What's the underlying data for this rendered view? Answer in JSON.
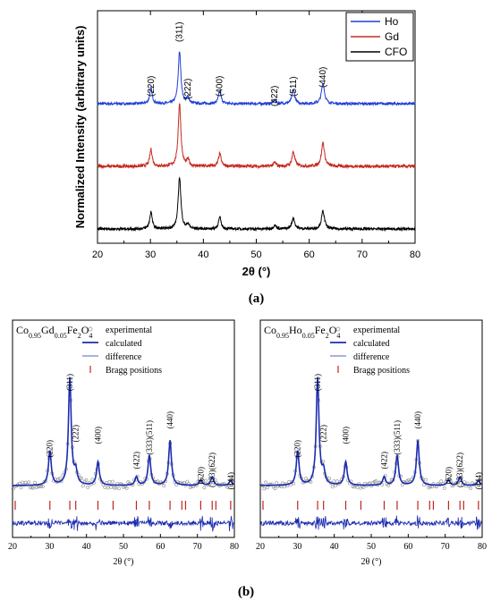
{
  "chart_data": [
    {
      "type": "line",
      "panel_label": "(a)",
      "xlabel": "2θ (°)",
      "ylabel": "Normalized Intensity (arbitrary units)",
      "xlim": [
        20,
        80
      ],
      "xticks": [
        20,
        30,
        40,
        50,
        60,
        70,
        80
      ],
      "legend_position": "top-right",
      "peaks": [
        {
          "label": "(220)",
          "x": 30.1
        },
        {
          "label": "(311)",
          "x": 35.5
        },
        {
          "label": "(222)",
          "x": 37.1
        },
        {
          "label": "(400)",
          "x": 43.1
        },
        {
          "label": "(422)",
          "x": 53.5
        },
        {
          "label": "(511)",
          "x": 57.0
        },
        {
          "label": "(440)",
          "x": 62.6
        }
      ],
      "series": [
        {
          "name": "Ho",
          "color": "#1f3fd6",
          "peak_heights": [
            0.3,
            1.0,
            0.12,
            0.24,
            0.07,
            0.26,
            0.4
          ]
        },
        {
          "name": "Gd",
          "color": "#c62a20",
          "peak_heights": [
            0.27,
            1.0,
            0.1,
            0.2,
            0.06,
            0.23,
            0.38
          ]
        },
        {
          "name": "CFO",
          "color": "#000000",
          "peak_heights": [
            0.33,
            1.0,
            0.09,
            0.22,
            0.07,
            0.21,
            0.35
          ]
        }
      ]
    },
    {
      "type": "line",
      "panel_label": "(b)",
      "title": {
        "base": "Co",
        "s1": "0.95",
        "el": "Gd",
        "s2": "0.05",
        "rest": "Fe",
        "s3": "2",
        "o": "O",
        "s4": "4"
      },
      "xlabel": "2θ (°)",
      "xlim": [
        20,
        80
      ],
      "xticks": [
        20,
        30,
        40,
        50,
        60,
        70,
        80
      ],
      "legend": [
        "experimental",
        "calculated",
        "difference",
        "Bragg positions"
      ],
      "peaks": [
        {
          "label": "(220)",
          "x": 30.1
        },
        {
          "label": "(311)",
          "x": 35.5
        },
        {
          "label": "(222)",
          "x": 37.1
        },
        {
          "label": "(400)",
          "x": 43.1
        },
        {
          "label": "(422)",
          "x": 53.5
        },
        {
          "label": "(333)(511)",
          "x": 57.0
        },
        {
          "label": "(440)",
          "x": 62.6
        },
        {
          "label": "(620)",
          "x": 70.9
        },
        {
          "label": "(533)(622)",
          "x": 74.0
        },
        {
          "label": "(444)",
          "x": 79.0
        }
      ],
      "bragg_positions": [
        18.3,
        30.1,
        35.5,
        37.1,
        43.1,
        47.2,
        53.5,
        57.0,
        62.6,
        65.8,
        66.8,
        70.9,
        74.0,
        75.0,
        79.0
      ]
    },
    {
      "type": "line",
      "panel_label": "(b)",
      "title": {
        "base": "Co",
        "s1": "0.95",
        "el": "Ho",
        "s2": "0.05",
        "rest": "Fe",
        "s3": "2",
        "o": "O",
        "s4": "4"
      },
      "xlabel": "2θ (°)",
      "xlim": [
        20,
        80
      ],
      "xticks": [
        20,
        30,
        40,
        50,
        60,
        70,
        80
      ],
      "legend": [
        "experimental",
        "calculated",
        "difference",
        "Bragg positions"
      ],
      "peaks": [
        {
          "label": "(220)",
          "x": 30.1
        },
        {
          "label": "(311)",
          "x": 35.5
        },
        {
          "label": "(222)",
          "x": 37.1
        },
        {
          "label": "(400)",
          "x": 43.1
        },
        {
          "label": "(422)",
          "x": 53.5
        },
        {
          "label": "(333)(511)",
          "x": 57.0
        },
        {
          "label": "(440)",
          "x": 62.6
        },
        {
          "label": "(620)",
          "x": 70.9
        },
        {
          "label": "(533)(622)",
          "x": 74.0
        },
        {
          "label": "(444)",
          "x": 79.0
        }
      ],
      "bragg_positions": [
        18.3,
        30.1,
        35.5,
        37.1,
        43.1,
        47.2,
        53.5,
        57.0,
        62.6,
        65.8,
        66.8,
        70.9,
        74.0,
        75.0,
        79.0
      ]
    }
  ]
}
